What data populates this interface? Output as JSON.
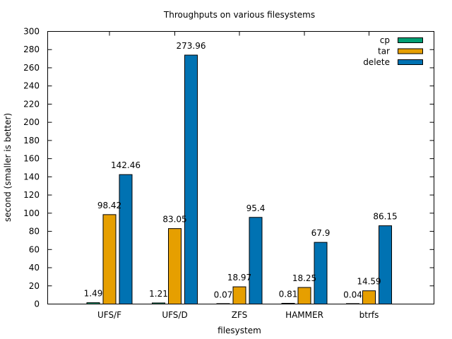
{
  "chart_data": {
    "type": "bar",
    "title": "Throughputs on various filesystems",
    "xlabel": "filesystem",
    "ylabel": "second (smaller is better)",
    "ylim": [
      0,
      300
    ],
    "yticks": [
      0,
      20,
      40,
      60,
      80,
      100,
      120,
      140,
      160,
      180,
      200,
      220,
      240,
      260,
      280,
      300
    ],
    "categories": [
      "UFS/F",
      "UFS/D",
      "ZFS",
      "HAMMER",
      "btrfs"
    ],
    "series": [
      {
        "name": "cp",
        "color": "#009e73",
        "values": [
          1.49,
          1.21,
          0.07,
          0.81,
          0.04
        ],
        "labels": [
          "1.49",
          "1.21",
          "0.07",
          "0.81",
          "0.04"
        ]
      },
      {
        "name": "tar",
        "color": "#e69f00",
        "values": [
          98.42,
          83.05,
          18.97,
          18.25,
          14.59
        ],
        "labels": [
          "98.42",
          "83.05",
          "18.97",
          "18.25",
          "14.59"
        ]
      },
      {
        "name": "delete",
        "color": "#0072b2",
        "values": [
          142.46,
          273.96,
          95.4,
          67.9,
          86.15
        ],
        "labels": [
          "142.46",
          "273.96",
          "95.4",
          "67.9",
          "86.15"
        ]
      }
    ],
    "legend_position": "top-right",
    "grid": false
  }
}
